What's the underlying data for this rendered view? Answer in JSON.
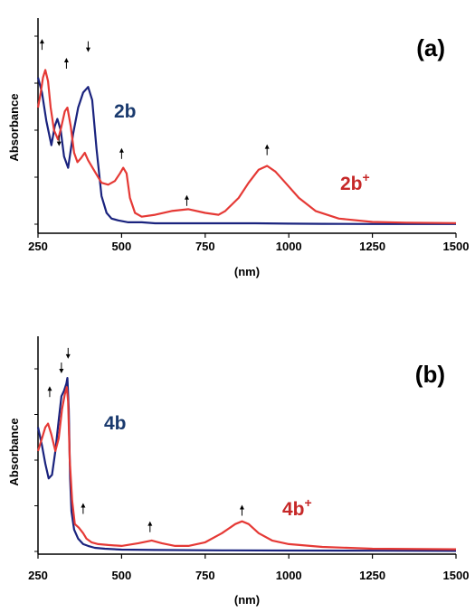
{
  "chart_data": [
    {
      "type": "line",
      "panel_label": "(a)",
      "xlabel": "(nm)",
      "ylabel": "Absorbance",
      "xlim": [
        250,
        1500
      ],
      "xticks": [
        250,
        500,
        750,
        1000,
        1250,
        1500
      ],
      "ylim": [
        0,
        1
      ],
      "grid": false,
      "legend": "none",
      "series": [
        {
          "label_text": "2b",
          "label_sup": "",
          "color": "#1a237e",
          "x": [
            250,
            262,
            275,
            290,
            300,
            308,
            318,
            328,
            340,
            355,
            370,
            385,
            400,
            412,
            425,
            440,
            455,
            470,
            490,
            520,
            560,
            600,
            800,
            900,
            1000,
            1100,
            1250,
            1500
          ],
          "y": [
            0.78,
            0.7,
            0.55,
            0.42,
            0.52,
            0.56,
            0.5,
            0.36,
            0.3,
            0.48,
            0.62,
            0.7,
            0.73,
            0.66,
            0.4,
            0.15,
            0.06,
            0.03,
            0.02,
            0.01,
            0.01,
            0.005,
            0.005,
            0.005,
            0.003,
            0.002,
            0.001,
            0.001
          ]
        },
        {
          "label_text": "2b",
          "label_sup": "+",
          "color": "#e53935",
          "x": [
            250,
            258,
            265,
            272,
            280,
            288,
            298,
            310,
            320,
            330,
            338,
            348,
            358,
            368,
            378,
            390,
            400,
            420,
            440,
            460,
            480,
            495,
            505,
            515,
            525,
            540,
            560,
            600,
            650,
            700,
            750,
            790,
            810,
            850,
            880,
            910,
            935,
            960,
            990,
            1030,
            1080,
            1150,
            1250,
            1350,
            1500
          ],
          "y": [
            0.62,
            0.7,
            0.78,
            0.82,
            0.76,
            0.62,
            0.5,
            0.45,
            0.52,
            0.6,
            0.62,
            0.52,
            0.38,
            0.33,
            0.35,
            0.38,
            0.34,
            0.28,
            0.22,
            0.21,
            0.23,
            0.27,
            0.3,
            0.27,
            0.14,
            0.06,
            0.04,
            0.05,
            0.07,
            0.08,
            0.06,
            0.05,
            0.07,
            0.14,
            0.22,
            0.29,
            0.31,
            0.28,
            0.22,
            0.14,
            0.07,
            0.03,
            0.012,
            0.008,
            0.006
          ]
        }
      ],
      "annotations": [
        {
          "type": "arrow-up",
          "x": 262,
          "y": 0.98
        },
        {
          "type": "arrow-up",
          "x": 335,
          "y": 0.88
        },
        {
          "type": "arrow-down",
          "x": 400,
          "y": 0.92
        },
        {
          "type": "arrow-down",
          "x": 313,
          "y": 0.42
        },
        {
          "type": "arrow-up",
          "x": 500,
          "y": 0.4
        },
        {
          "type": "arrow-up",
          "x": 695,
          "y": 0.15
        },
        {
          "type": "arrow-up",
          "x": 935,
          "y": 0.42
        }
      ]
    },
    {
      "type": "line",
      "panel_label": "(b)",
      "xlabel": "(nm)",
      "ylabel": "Absorbance",
      "xlim": [
        250,
        1500
      ],
      "xticks": [
        250,
        500,
        750,
        1000,
        1250,
        1500
      ],
      "ylim": [
        0,
        1
      ],
      "grid": false,
      "legend": "none",
      "series": [
        {
          "label_text": "4b",
          "label_sup": "",
          "color": "#1a237e",
          "x": [
            250,
            262,
            272,
            282,
            292,
            302,
            312,
            320,
            328,
            335,
            338,
            342,
            346,
            350,
            358,
            370,
            385,
            400,
            420,
            450,
            500,
            600,
            800,
            1000,
            1250,
            1500
          ],
          "y": [
            0.68,
            0.58,
            0.48,
            0.4,
            0.42,
            0.55,
            0.72,
            0.85,
            0.88,
            0.92,
            0.95,
            0.78,
            0.4,
            0.22,
            0.12,
            0.07,
            0.04,
            0.03,
            0.02,
            0.015,
            0.01,
            0.008,
            0.006,
            0.005,
            0.004,
            0.003
          ]
        },
        {
          "label_text": "4b",
          "label_sup": "+",
          "color": "#e53935",
          "x": [
            250,
            262,
            272,
            280,
            290,
            302,
            312,
            322,
            330,
            336,
            340,
            345,
            352,
            360,
            372,
            385,
            395,
            410,
            430,
            460,
            500,
            550,
            590,
            620,
            660,
            700,
            750,
            800,
            840,
            860,
            880,
            910,
            950,
            1000,
            1100,
            1250,
            1500
          ],
          "y": [
            0.55,
            0.62,
            0.68,
            0.7,
            0.64,
            0.55,
            0.62,
            0.78,
            0.86,
            0.9,
            0.82,
            0.5,
            0.28,
            0.15,
            0.13,
            0.1,
            0.07,
            0.05,
            0.04,
            0.035,
            0.03,
            0.045,
            0.06,
            0.045,
            0.03,
            0.03,
            0.05,
            0.1,
            0.15,
            0.165,
            0.15,
            0.1,
            0.06,
            0.04,
            0.025,
            0.015,
            0.012
          ]
        }
      ],
      "annotations": [
        {
          "type": "arrow-up",
          "x": 285,
          "y": 0.9
        },
        {
          "type": "arrow-down",
          "x": 320,
          "y": 0.98
        },
        {
          "type": "arrow-down",
          "x": 340,
          "y": 1.06
        },
        {
          "type": "arrow-up",
          "x": 385,
          "y": 0.26
        },
        {
          "type": "arrow-up",
          "x": 585,
          "y": 0.16
        },
        {
          "type": "arrow-up",
          "x": 860,
          "y": 0.25
        }
      ]
    }
  ]
}
